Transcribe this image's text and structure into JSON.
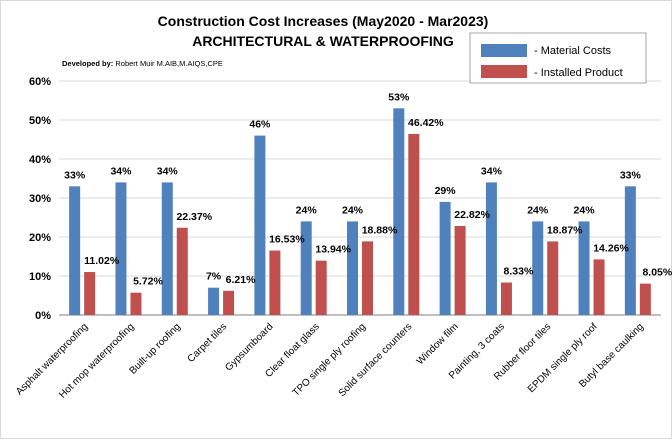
{
  "chart_data": {
    "type": "bar",
    "title": "Construction Cost Increases (May2020 - Mar2023)",
    "subtitle": "ARCHITECTURAL & WATERPROOFING",
    "credit_label": "Developed by:",
    "credit_text": "Robert Muir M.AIB,M.AIQS,CPE",
    "categories": [
      "Asphalt waterproofing",
      "Hot mop waterproofing",
      "Built-up roofing",
      "Carpet tiles",
      "Gypsumboard",
      "Clear float glass",
      "TPO single ply roofing",
      "Solid surface counters",
      "Window film",
      "Painting, 3 coats",
      "Rubber floor tiles",
      "EPDM single ply roof",
      "Butyl base caulking"
    ],
    "series": [
      {
        "name": "- Material Costs",
        "color": "#4f81bd",
        "values": [
          33,
          34,
          34,
          7,
          46,
          24,
          24,
          53,
          29,
          34,
          24,
          24,
          33
        ],
        "labels": [
          "33%",
          "34%",
          "34%",
          "7%",
          "46%",
          "24%",
          "24%",
          "53%",
          "29%",
          "34%",
          "24%",
          "24%",
          "33%"
        ]
      },
      {
        "name": "- Installed Product",
        "color": "#c0504d",
        "values": [
          11.02,
          5.72,
          22.37,
          6.21,
          16.53,
          13.94,
          18.88,
          46.42,
          22.82,
          8.33,
          18.87,
          14.26,
          8.05
        ],
        "labels": [
          "11.02%",
          "5.72%",
          "22.37%",
          "6.21%",
          "16.53%",
          "13.94%",
          "18.88%",
          "46.42%",
          "22.82%",
          "8.33%",
          "18.87%",
          "14.26%",
          "8.05%"
        ]
      }
    ],
    "ylim": [
      0,
      60
    ],
    "yticks": [
      "0%",
      "10%",
      "20%",
      "30%",
      "40%",
      "50%",
      "60%"
    ],
    "ytick_values": [
      0,
      10,
      20,
      30,
      40,
      50,
      60
    ],
    "grid": true,
    "legend_position": "top-right"
  }
}
